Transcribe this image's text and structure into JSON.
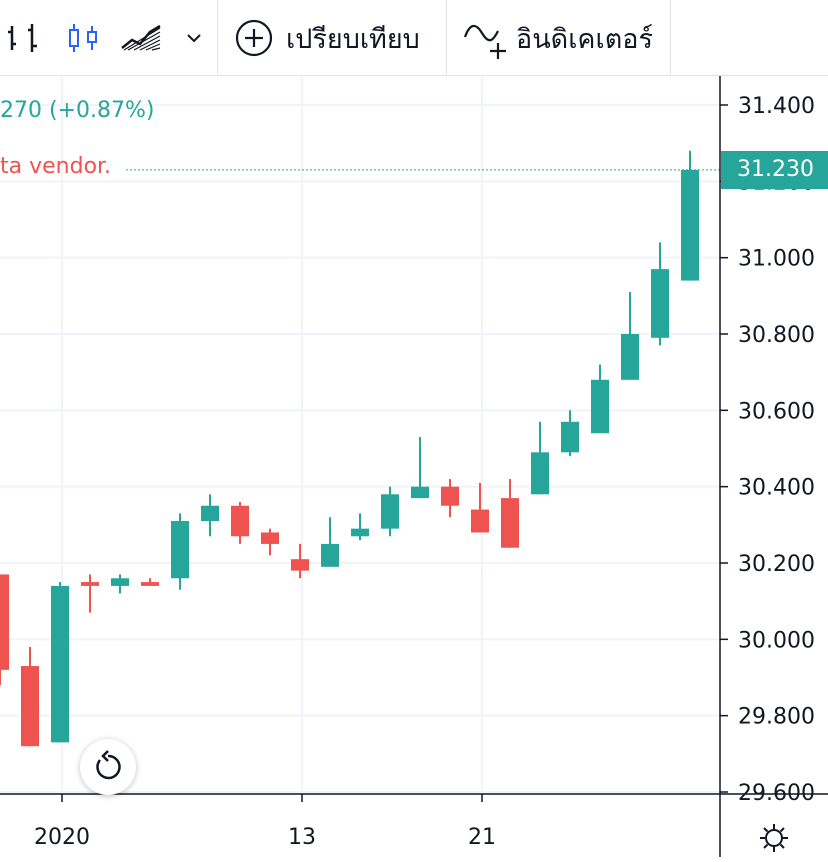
{
  "toolbar": {
    "bar_chart_icon": "bars-icon",
    "candle_chart_icon": "candles-icon",
    "area_chart_icon": "area-icon",
    "dropdown_icon": "chevron-down-icon",
    "compare_label": "เปรียบเทียบ",
    "indicators_label": "อินดิเคเตอร์"
  },
  "legend": {
    "change_text": "270 (+0.87%)",
    "vendor_text": "ta vendor."
  },
  "colors": {
    "up": "#26a69a",
    "down": "#ef5350",
    "grid": "#f0f3fa",
    "axis": "#131722"
  },
  "price_axis": {
    "labels": [
      "31.400",
      "31.200",
      "31.000",
      "30.800",
      "30.600",
      "30.400",
      "30.200",
      "30.000",
      "29.800",
      "29.600"
    ],
    "last_price": "31.230"
  },
  "time_axis": {
    "labels": [
      "2020",
      "13",
      "21"
    ]
  },
  "chart_data": {
    "type": "candlestick",
    "y_range": [
      29.58,
      31.42
    ],
    "candles": [
      {
        "o": 30.17,
        "h": 30.17,
        "l": 29.88,
        "c": 29.92
      },
      {
        "o": 29.93,
        "h": 29.98,
        "l": 29.72,
        "c": 29.72
      },
      {
        "o": 29.73,
        "h": 30.15,
        "l": 29.73,
        "c": 30.14
      },
      {
        "o": 30.15,
        "h": 30.17,
        "l": 30.07,
        "c": 30.14
      },
      {
        "o": 30.14,
        "h": 30.17,
        "l": 30.12,
        "c": 30.16
      },
      {
        "o": 30.15,
        "h": 30.16,
        "l": 30.14,
        "c": 30.14
      },
      {
        "o": 30.16,
        "h": 30.33,
        "l": 30.13,
        "c": 30.31
      },
      {
        "o": 30.31,
        "h": 30.38,
        "l": 30.27,
        "c": 30.35
      },
      {
        "o": 30.35,
        "h": 30.36,
        "l": 30.25,
        "c": 30.27
      },
      {
        "o": 30.28,
        "h": 30.29,
        "l": 30.22,
        "c": 30.25
      },
      {
        "o": 30.21,
        "h": 30.25,
        "l": 30.16,
        "c": 30.18
      },
      {
        "o": 30.19,
        "h": 30.32,
        "l": 30.19,
        "c": 30.25
      },
      {
        "o": 30.27,
        "h": 30.33,
        "l": 30.26,
        "c": 30.29
      },
      {
        "o": 30.29,
        "h": 30.4,
        "l": 30.27,
        "c": 30.38
      },
      {
        "o": 30.37,
        "h": 30.53,
        "l": 30.37,
        "c": 30.4
      },
      {
        "o": 30.4,
        "h": 30.42,
        "l": 30.32,
        "c": 30.35
      },
      {
        "o": 30.34,
        "h": 30.41,
        "l": 30.28,
        "c": 30.28
      },
      {
        "o": 30.37,
        "h": 30.42,
        "l": 30.24,
        "c": 30.24
      },
      {
        "o": 30.38,
        "h": 30.57,
        "l": 30.38,
        "c": 30.49
      },
      {
        "o": 30.49,
        "h": 30.6,
        "l": 30.48,
        "c": 30.57
      },
      {
        "o": 30.54,
        "h": 30.72,
        "l": 30.54,
        "c": 30.68
      },
      {
        "o": 30.68,
        "h": 30.91,
        "l": 30.68,
        "c": 30.8
      },
      {
        "o": 30.79,
        "h": 31.04,
        "l": 30.77,
        "c": 30.97
      },
      {
        "o": 30.94,
        "h": 31.28,
        "l": 30.94,
        "c": 31.23
      }
    ]
  }
}
